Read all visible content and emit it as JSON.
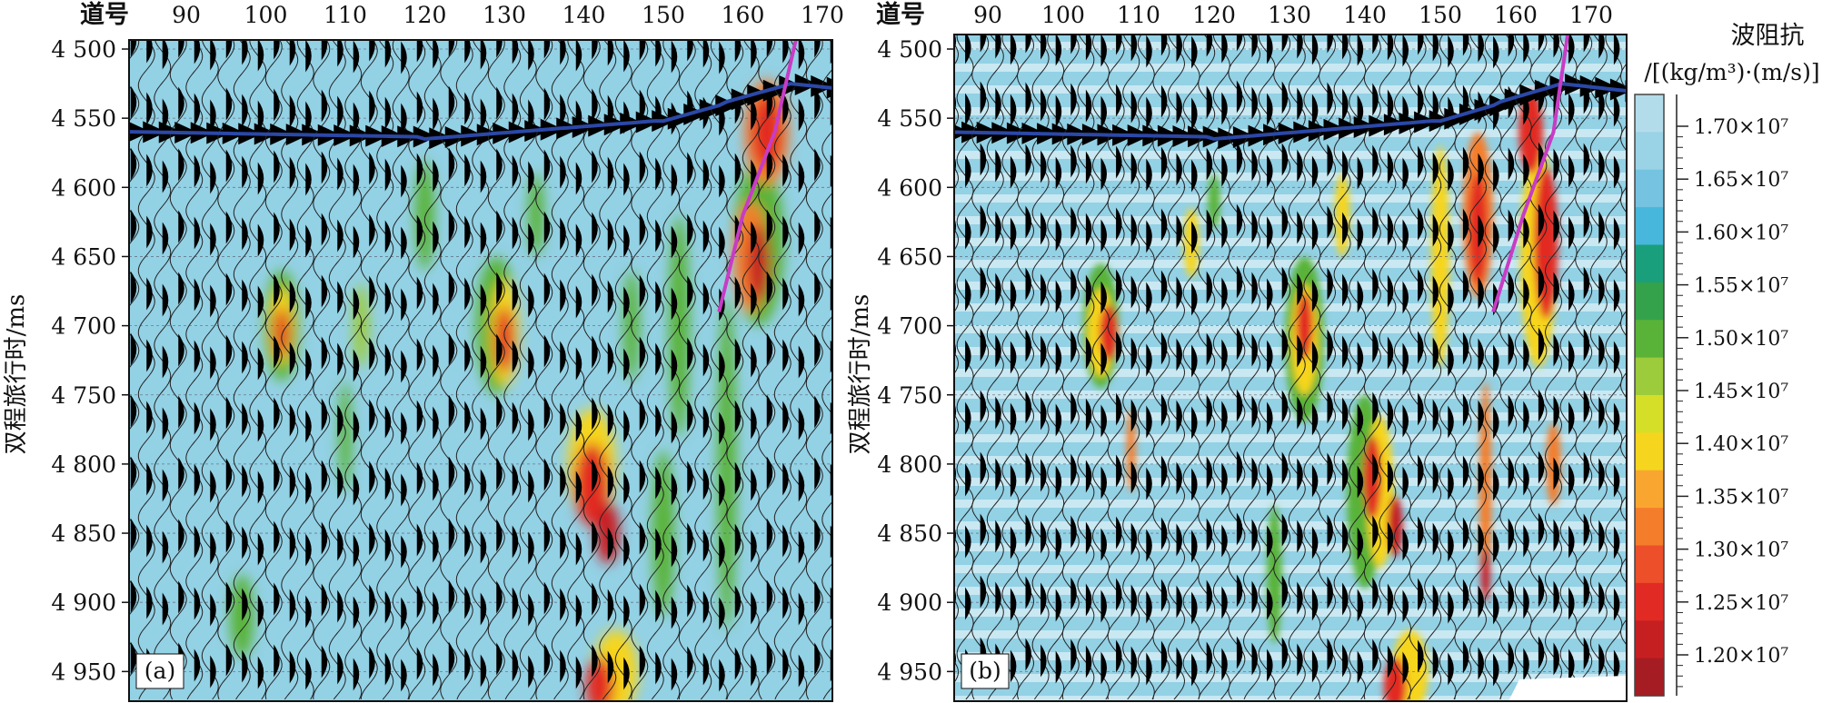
{
  "header_label": "道号",
  "y_axis_label": "双程旅行时/ms",
  "trace_ticks": [
    "90",
    "100",
    "110",
    "120",
    "130",
    "140",
    "150",
    "160",
    "170"
  ],
  "time_ticks": [
    "4 500",
    "4 550",
    "4 600",
    "4 650",
    "4 700",
    "4 750",
    "4 800",
    "4 850",
    "4 900",
    "4 950"
  ],
  "panels": [
    {
      "tag": "(a)"
    },
    {
      "tag": "(b)"
    }
  ],
  "colorbar": {
    "title_line1": "波阻抗",
    "title_line2": "/[(kg/m³)·(m/s)]",
    "ticks": [
      "1.70×10⁷",
      "1.65×10⁷",
      "1.60×10⁷",
      "1.55×10⁷",
      "1.50×10⁷",
      "1.45×10⁷",
      "1.40×10⁷",
      "1.35×10⁷",
      "1.30×10⁷",
      "1.25×10⁷",
      "1.20×10⁷"
    ],
    "colors": [
      "#b3dcea",
      "#9ad2e6",
      "#75c3e0",
      "#47b7dc",
      "#1a9f7c",
      "#34a24a",
      "#59b338",
      "#9ccb3b",
      "#d6df27",
      "#f6d51e",
      "#f9a630",
      "#f47d2b",
      "#ec4f2a",
      "#e22a24",
      "#c61f22",
      "#a51d22"
    ]
  },
  "colors": {
    "background": "#93d1e5",
    "horizon": "#2b48a6",
    "fault": "#c83cc5"
  }
}
